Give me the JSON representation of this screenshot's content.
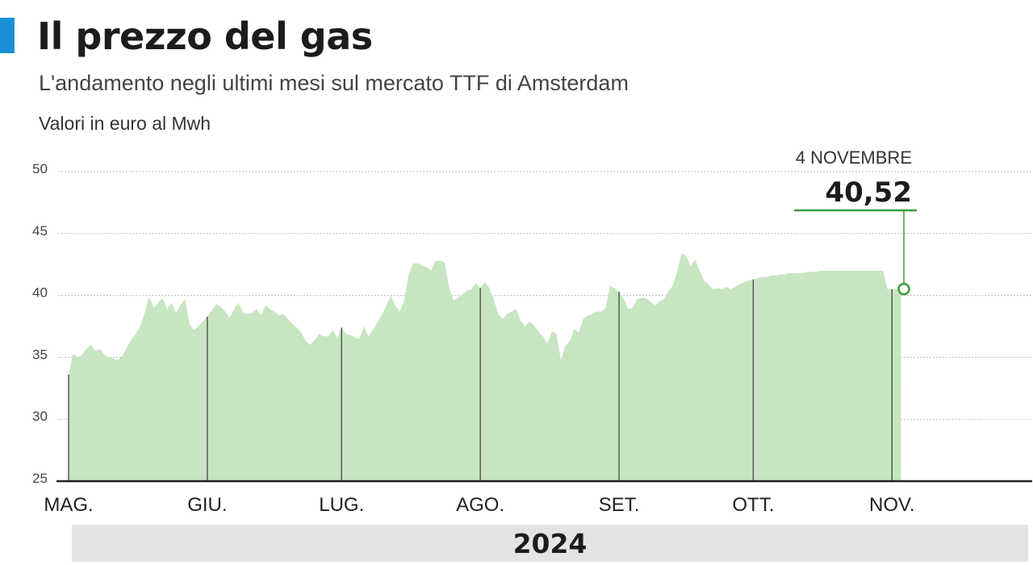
{
  "header": {
    "title": "Il prezzo del gas",
    "subtitle": "L'andamento negli ultimi mesi sul mercato TTF di Amsterdam",
    "unit": "Valori in euro al Mwh"
  },
  "footer": {
    "year": "2024"
  },
  "colors": {
    "accent": "#1a8fd6",
    "area_fill": "#c7e5c0",
    "callout": "#3d9a3a",
    "grid": "#bdbdbd",
    "month_line": "#444444",
    "axis": "#222222"
  },
  "chart_data": {
    "type": "area",
    "ylim": [
      25,
      50
    ],
    "yticks": [
      50,
      45,
      40,
      35,
      30,
      25
    ],
    "grid": true,
    "months": [
      {
        "label": "MAG.",
        "x": 0
      },
      {
        "label": "GIU.",
        "x": 31
      },
      {
        "label": "LUG.",
        "x": 61
      },
      {
        "label": "AGO.",
        "x": 92
      },
      {
        "label": "SET.",
        "x": 123
      },
      {
        "label": "OTT.",
        "x": 153
      },
      {
        "label": "NOV.",
        "x": 184
      }
    ],
    "series": [
      {
        "x": [
          0,
          1,
          2,
          3,
          4,
          5,
          6,
          7,
          8,
          9,
          10,
          11,
          12,
          13,
          14,
          15,
          16,
          17,
          18,
          19,
          20,
          21,
          22,
          23,
          24,
          25,
          26,
          27,
          28,
          29,
          30,
          31,
          32,
          33,
          34,
          35,
          36,
          37,
          38,
          39,
          40,
          41,
          42,
          43,
          44,
          45,
          46,
          47,
          48,
          49,
          50,
          51,
          52,
          53,
          54,
          55,
          56,
          57,
          58,
          59,
          60,
          61,
          62,
          63,
          64,
          65,
          66,
          67,
          68,
          69,
          70,
          71,
          72,
          73,
          74,
          75,
          76,
          77,
          78,
          79,
          80,
          81,
          82,
          83,
          84,
          85,
          86,
          87,
          88,
          89,
          90,
          91,
          92,
          93,
          94,
          95,
          96,
          97,
          98,
          99,
          100,
          101,
          102,
          103,
          104,
          105,
          106,
          107,
          108,
          109,
          110,
          111,
          112,
          113,
          114,
          115,
          116,
          117,
          118,
          119,
          120,
          121,
          122,
          123,
          124,
          125,
          126,
          127,
          128,
          129,
          130,
          131,
          132,
          133,
          134,
          135,
          136,
          137,
          138,
          139,
          140,
          141,
          142,
          143,
          144,
          145,
          146,
          147,
          148,
          149,
          150,
          151,
          152,
          153,
          154,
          155,
          156,
          157,
          158,
          159,
          160,
          161,
          162,
          163,
          164,
          165,
          166,
          167,
          168,
          169,
          170,
          171,
          172,
          173,
          174,
          175,
          176,
          177,
          178,
          179,
          180,
          181,
          182,
          183,
          184,
          185,
          186
        ],
        "y": [
          33.6,
          35.3,
          35.0,
          35.2,
          35.7,
          36.0,
          35.5,
          35.7,
          35.2,
          35.0,
          34.9,
          34.8,
          35.1,
          35.8,
          36.4,
          36.9,
          37.5,
          38.6,
          39.9,
          39.0,
          39.4,
          39.8,
          38.9,
          39.4,
          38.6,
          39.2,
          39.7,
          37.7,
          37.2,
          37.5,
          37.9,
          38.3,
          38.8,
          39.3,
          39.1,
          38.7,
          38.2,
          38.9,
          39.4,
          38.6,
          38.5,
          38.6,
          38.9,
          38.4,
          39.2,
          38.9,
          38.7,
          38.4,
          38.5,
          38.1,
          37.7,
          37.4,
          37.0,
          36.3,
          36.0,
          36.4,
          36.9,
          36.7,
          36.7,
          37.2,
          36.6,
          37.4,
          36.9,
          36.8,
          36.6,
          36.5,
          37.5,
          36.7,
          37.2,
          37.8,
          38.4,
          39.2,
          40.0,
          39.2,
          38.7,
          39.6,
          41.7,
          42.6,
          42.6,
          42.4,
          42.3,
          42.0,
          42.8,
          42.8,
          42.7,
          40.7,
          39.6,
          39.8,
          40.1,
          40.4,
          40.5,
          41.0,
          40.6,
          41.1,
          40.6,
          39.7,
          38.5,
          38.1,
          38.5,
          38.7,
          38.9,
          38.0,
          37.5,
          37.9,
          37.6,
          37.1,
          36.7,
          36.1,
          37.1,
          36.9,
          34.8,
          35.9,
          36.3,
          37.3,
          37.0,
          38.1,
          38.4,
          38.5,
          38.7,
          38.7,
          39.0,
          40.8,
          40.6,
          40.3,
          39.8,
          38.9,
          39.0,
          39.7,
          39.8,
          39.8,
          39.5,
          39.2,
          39.5,
          39.7,
          40.3,
          40.8,
          41.9,
          43.4,
          43.2,
          42.4,
          42.9,
          42.0,
          41.2,
          40.9,
          40.5,
          40.6,
          40.5,
          40.7,
          40.5,
          40.7,
          40.9,
          41.1,
          41.2,
          41.3,
          41.4,
          41.5,
          41.5,
          41.6,
          41.6,
          41.7,
          41.7,
          41.8,
          41.8,
          41.8,
          41.8,
          41.9,
          41.9,
          41.9,
          42.0,
          42.0,
          42.0,
          42.0,
          42.0,
          42.0,
          42.0,
          42.0,
          42.0,
          42.0,
          42.0,
          42.0,
          42.0,
          42.0,
          42.0,
          40.5,
          40.5,
          40.52,
          40.52
        ]
      }
    ],
    "annotation": {
      "label": "4 NOVEMBRE",
      "value": "40,52",
      "x": 186,
      "y": 40.52
    }
  }
}
